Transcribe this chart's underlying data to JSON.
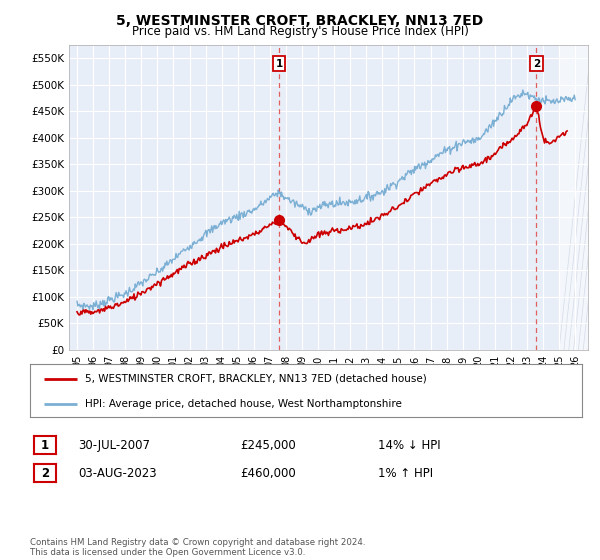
{
  "title": "5, WESTMINSTER CROFT, BRACKLEY, NN13 7ED",
  "subtitle": "Price paid vs. HM Land Registry's House Price Index (HPI)",
  "legend_line1": "5, WESTMINSTER CROFT, BRACKLEY, NN13 7ED (detached house)",
  "legend_line2": "HPI: Average price, detached house, West Northamptonshire",
  "annotation1_date": "30-JUL-2007",
  "annotation1_price": "£245,000",
  "annotation1_hpi": "14% ↓ HPI",
  "annotation2_date": "03-AUG-2023",
  "annotation2_price": "£460,000",
  "annotation2_hpi": "1% ↑ HPI",
  "footer": "Contains HM Land Registry data © Crown copyright and database right 2024.\nThis data is licensed under the Open Government Licence v3.0.",
  "hpi_color": "#7bafd4",
  "price_color": "#cc0000",
  "vline_color": "#e06060",
  "point1_x": 2007.58,
  "point1_y": 245000,
  "point2_x": 2023.59,
  "point2_y": 460000,
  "ylim_min": 0,
  "ylim_max": 575000,
  "xlim_min": 1994.5,
  "xlim_max": 2026.8,
  "yticks": [
    0,
    50000,
    100000,
    150000,
    200000,
    250000,
    300000,
    350000,
    400000,
    450000,
    500000,
    550000
  ],
  "xticks": [
    1995,
    1996,
    1997,
    1998,
    1999,
    2000,
    2001,
    2002,
    2003,
    2004,
    2005,
    2006,
    2007,
    2008,
    2009,
    2010,
    2011,
    2012,
    2013,
    2014,
    2015,
    2016,
    2017,
    2018,
    2019,
    2020,
    2021,
    2022,
    2023,
    2024,
    2025,
    2026
  ],
  "plot_bg_color": "#e8eef8",
  "fig_bg_color": "#ffffff",
  "grid_color": "#ffffff",
  "hpi_fill_color": "#c8d8f0"
}
